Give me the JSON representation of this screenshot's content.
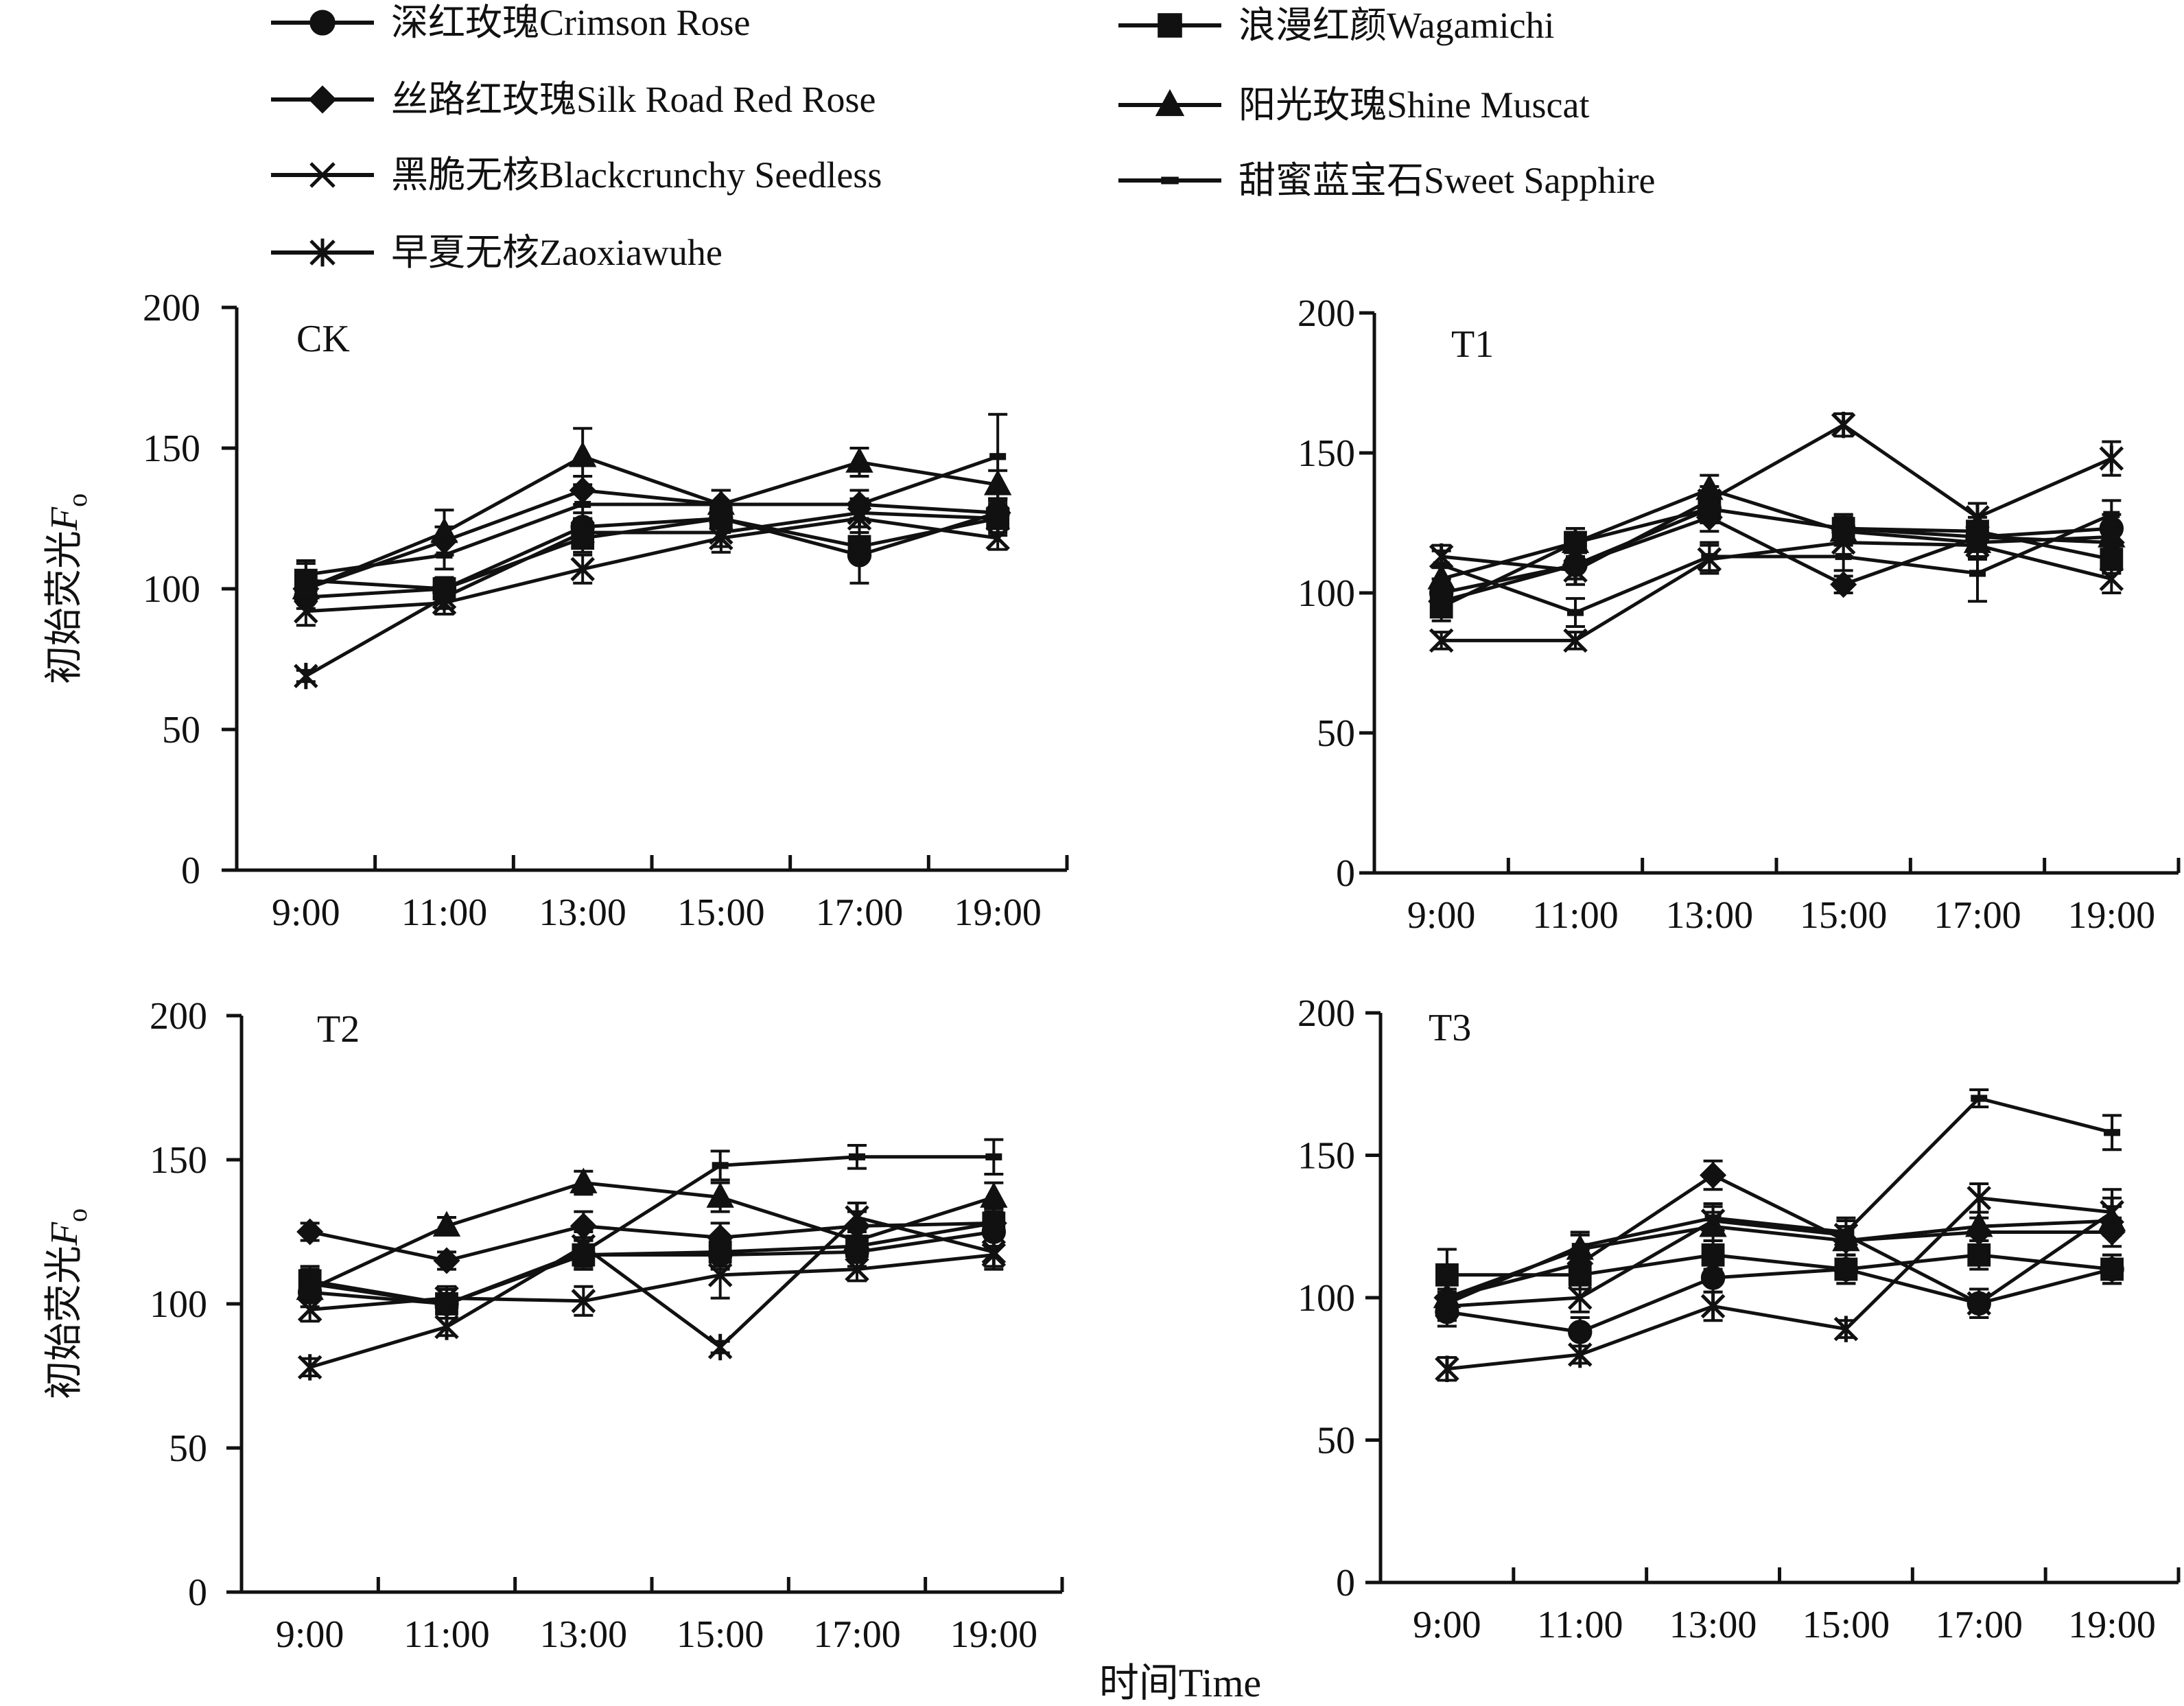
{
  "figure": {
    "xlabel": "时间Time",
    "ylabel_main": "初始荧光",
    "ylabel_symbol": "F",
    "ylabel_sub": "o"
  },
  "legend": [
    {
      "label": "深红玫瑰Crimson Rose",
      "marker": "circle"
    },
    {
      "label": "浪漫红颜Wagamichi",
      "marker": "square"
    },
    {
      "label": "丝路红玫瑰Silk Road Red Rose",
      "marker": "diamond"
    },
    {
      "label": "阳光玫瑰Shine Muscat",
      "marker": "triangle"
    },
    {
      "label": "黑脆无核Blackcrunchy Seedless",
      "marker": "x"
    },
    {
      "label": "甜蜜蓝宝石Sweet Sapphire",
      "marker": "dash"
    },
    {
      "label": "早夏无核Zaoxiawuhe",
      "marker": "star"
    }
  ],
  "chart_data": [
    {
      "type": "line",
      "title": "CK",
      "categories": [
        "9:00",
        "11:00",
        "13:00",
        "15:00",
        "17:00",
        "19:00"
      ],
      "ylim": [
        0,
        200
      ],
      "yticks": [
        0,
        50,
        100,
        150,
        200
      ],
      "series": [
        {
          "name": "深红玫瑰Crimson Rose",
          "values": [
            97,
            100,
            122,
            125,
            112,
            127
          ],
          "errors": [
            4,
            4,
            5,
            5,
            10,
            5
          ]
        },
        {
          "name": "浪漫红颜Wagamichi",
          "values": [
            103,
            100,
            118,
            125,
            115,
            125
          ],
          "errors": [
            6,
            4,
            5,
            5,
            5,
            6
          ]
        },
        {
          "name": "丝路红玫瑰Silk Road Red Rose",
          "values": [
            100,
            117,
            135,
            130,
            130,
            127
          ],
          "errors": [
            5,
            5,
            5,
            5,
            5,
            5
          ]
        },
        {
          "name": "阳光玫瑰Shine Muscat",
          "values": [
            100,
            120,
            147,
            130,
            145,
            137
          ],
          "errors": [
            5,
            8,
            10,
            5,
            5,
            5
          ]
        },
        {
          "name": "黑脆无核Blackcrunchy Seedless",
          "values": [
            92,
            95,
            107,
            118,
            125,
            118
          ],
          "errors": [
            5,
            4,
            5,
            5,
            5,
            4
          ]
        },
        {
          "name": "甜蜜蓝宝石Sweet Sapphire",
          "values": [
            105,
            112,
            130,
            130,
            130,
            147
          ],
          "errors": [
            5,
            5,
            5,
            5,
            5,
            15
          ]
        },
        {
          "name": "早夏无核Zaoxiawuhe",
          "values": [
            69,
            97,
            120,
            120,
            127,
            125
          ],
          "errors": [
            2,
            4,
            5,
            5,
            5,
            5
          ]
        }
      ]
    },
    {
      "type": "line",
      "title": "T1",
      "categories": [
        "9:00",
        "11:00",
        "13:00",
        "15:00",
        "17:00",
        "19:00"
      ],
      "ylim": [
        0,
        200
      ],
      "yticks": [
        0,
        50,
        100,
        150,
        200
      ],
      "series": [
        {
          "name": "深红玫瑰Crimson Rose",
          "values": [
            100,
            110,
            130,
            123,
            120,
            123
          ],
          "errors": [
            5,
            5,
            5,
            5,
            5,
            5
          ]
        },
        {
          "name": "浪漫红颜Wagamichi",
          "values": [
            95,
            118,
            130,
            123,
            122,
            112
          ],
          "errors": [
            5,
            5,
            5,
            5,
            5,
            5
          ]
        },
        {
          "name": "丝路红玫瑰Silk Road Red Rose",
          "values": [
            97,
            110,
            127,
            103,
            120,
            118
          ],
          "errors": [
            5,
            5,
            5,
            3,
            5,
            5
          ]
        },
        {
          "name": "阳光玫瑰Shine Muscat",
          "values": [
            105,
            118,
            137,
            122,
            118,
            120
          ],
          "errors": [
            5,
            5,
            5,
            5,
            5,
            5
          ]
        },
        {
          "name": "黑脆无核Blackcrunchy Seedless",
          "values": [
            83,
            83,
            112,
            118,
            117,
            105
          ],
          "errors": [
            3,
            3,
            5,
            5,
            5,
            5
          ]
        },
        {
          "name": "甜蜜蓝宝石Sweet Sapphire",
          "values": [
            110,
            93,
            113,
            113,
            107,
            128
          ],
          "errors": [
            5,
            5,
            5,
            5,
            10,
            5
          ]
        },
        {
          "name": "早夏无核Zaoxiawuhe",
          "values": [
            113,
            108,
            133,
            160,
            127,
            148
          ],
          "errors": [
            4,
            5,
            5,
            4,
            5,
            6
          ]
        }
      ]
    },
    {
      "type": "line",
      "title": "T2",
      "categories": [
        "9:00",
        "11:00",
        "13:00",
        "15:00",
        "17:00",
        "19:00"
      ],
      "ylim": [
        0,
        200
      ],
      "yticks": [
        0,
        50,
        100,
        150,
        200
      ],
      "series": [
        {
          "name": "深红玫瑰Crimson Rose",
          "values": [
            104,
            100,
            117,
            117,
            118,
            125
          ],
          "errors": [
            5,
            5,
            5,
            5,
            5,
            5
          ]
        },
        {
          "name": "浪漫红颜Wagamichi",
          "values": [
            108,
            100,
            117,
            118,
            120,
            128
          ],
          "errors": [
            5,
            5,
            5,
            5,
            5,
            5
          ]
        },
        {
          "name": "丝路红玫瑰Silk Road Red Rose",
          "values": [
            125,
            115,
            127,
            123,
            127,
            128
          ],
          "errors": [
            3,
            3,
            5,
            5,
            5,
            5
          ]
        },
        {
          "name": "阳光玫瑰Shine Muscat",
          "values": [
            105,
            127,
            142,
            137,
            122,
            137
          ],
          "errors": [
            4,
            3,
            4,
            5,
            5,
            5
          ]
        },
        {
          "name": "黑脆无核Blackcrunchy Seedless",
          "values": [
            98,
            102,
            101,
            110,
            112,
            117
          ],
          "errors": [
            4,
            4,
            5,
            8,
            4,
            5
          ]
        },
        {
          "name": "甜蜜蓝宝石Sweet Sapphire",
          "values": [
            107,
            100,
            118,
            148,
            151,
            151
          ],
          "errors": [
            5,
            5,
            5,
            5,
            4,
            6
          ]
        },
        {
          "name": "早夏无核Zaoxiawuhe",
          "values": [
            78,
            92,
            120,
            85,
            130,
            118
          ],
          "errors": [
            3,
            3,
            5,
            2,
            5,
            5
          ]
        }
      ]
    },
    {
      "type": "line",
      "title": "T3",
      "categories": [
        "9:00",
        "11:00",
        "13:00",
        "15:00",
        "17:00",
        "19:00"
      ],
      "ylim": [
        0,
        200
      ],
      "yticks": [
        0,
        50,
        100,
        150,
        200
      ],
      "series": [
        {
          "name": "深红玫瑰Crimson Rose",
          "values": [
            95,
            88,
            107,
            110,
            98,
            110
          ],
          "errors": [
            5,
            5,
            5,
            5,
            5,
            5
          ]
        },
        {
          "name": "浪漫红颜Wagamichi",
          "values": [
            108,
            108,
            115,
            110,
            115,
            110
          ],
          "errors": [
            9,
            5,
            5,
            5,
            5,
            5
          ]
        },
        {
          "name": "丝路红玫瑰Silk Road Red Rose",
          "values": [
            100,
            112,
            143,
            120,
            123,
            123
          ],
          "errors": [
            5,
            5,
            5,
            5,
            5,
            5
          ]
        },
        {
          "name": "阳光玫瑰Shine Muscat",
          "values": [
            100,
            117,
            125,
            120,
            125,
            127
          ],
          "errors": [
            5,
            5,
            5,
            5,
            5,
            5
          ]
        },
        {
          "name": "黑脆无核Blackcrunchy Seedless",
          "values": [
            97,
            100,
            127,
            122,
            98,
            130
          ],
          "errors": [
            5,
            5,
            5,
            5,
            5,
            8
          ]
        },
        {
          "name": "甜蜜蓝宝石Sweet Sapphire",
          "values": [
            98,
            118,
            128,
            123,
            170,
            158
          ],
          "errors": [
            5,
            5,
            5,
            5,
            3,
            6
          ]
        },
        {
          "name": "早夏无核Zaoxiawuhe",
          "values": [
            75,
            80,
            97,
            89,
            135,
            130
          ],
          "errors": [
            4,
            3,
            5,
            3,
            5,
            5
          ]
        }
      ]
    }
  ]
}
